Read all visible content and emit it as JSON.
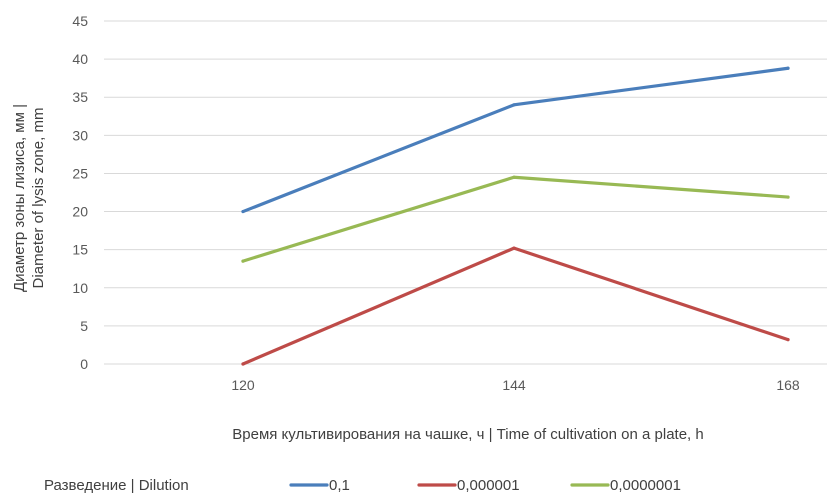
{
  "chart_data": {
    "type": "line",
    "x": [
      "120",
      "144",
      "168"
    ],
    "ylim": [
      0,
      45
    ],
    "yticks": [
      0,
      5,
      10,
      15,
      20,
      25,
      30,
      35,
      40,
      45
    ],
    "grid": true,
    "xlabel": "Время культивирования на чашке, ч | Time of cultivation on a plate, h",
    "ylabel_line1": "Диаметр зоны лизиса, мм |",
    "ylabel_line2": "Diameter of lysis zone, mm",
    "legend_title": "Разведение | Dilution",
    "legend_position": "bottom-left",
    "series": [
      {
        "name": "0,1",
        "color": "#4a7ebb",
        "values": [
          20,
          34,
          38.8
        ]
      },
      {
        "name": "0,000001",
        "color": "#be4b48",
        "values": [
          0,
          15.2,
          3.2
        ]
      },
      {
        "name": "0,0000001",
        "color": "#98b954",
        "values": [
          13.5,
          24.5,
          21.9
        ]
      }
    ]
  }
}
